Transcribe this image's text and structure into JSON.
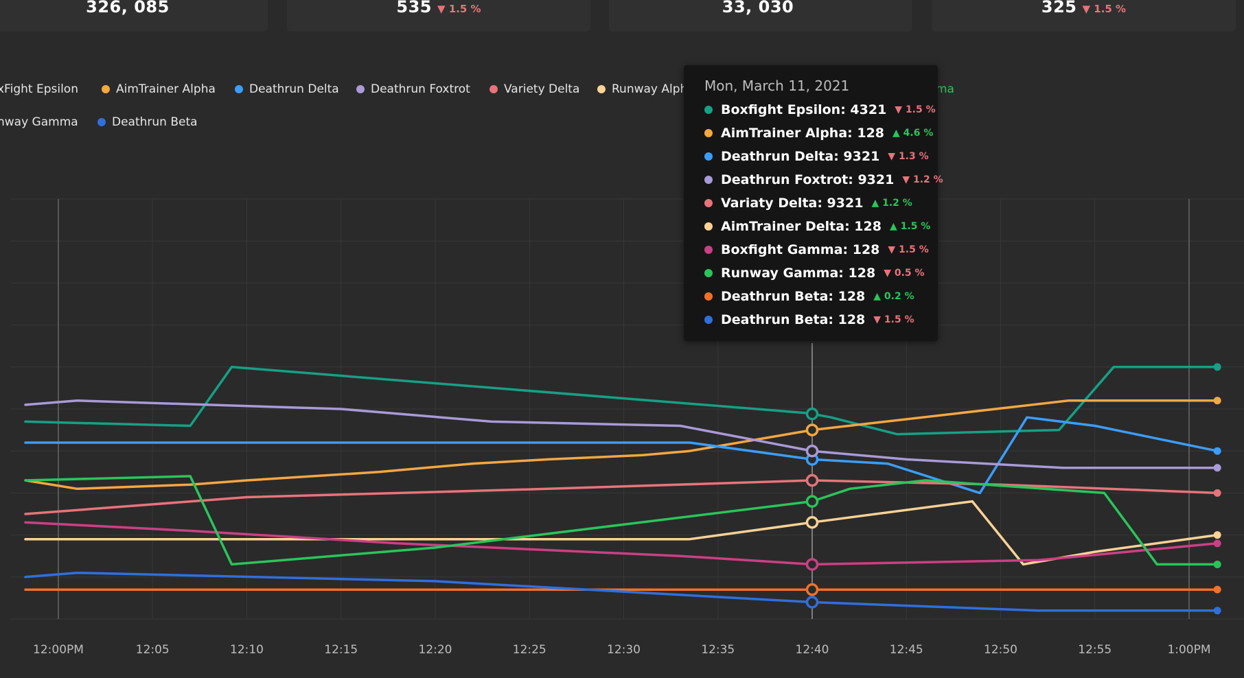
{
  "stats": [
    {
      "value": "326, 085",
      "delta": ""
    },
    {
      "value": "535",
      "delta": "▼ 1.5 %"
    },
    {
      "value": "33, 030",
      "delta": ""
    },
    {
      "value": "325",
      "delta": "▼ 1.5 %"
    }
  ],
  "legend": [
    {
      "label": "xFight Epsilon",
      "color": "#16a085"
    },
    {
      "label": "AimTrainer Alpha",
      "color": "#f5a742"
    },
    {
      "label": "Deathrun Delta",
      "color": "#3b9dfa"
    },
    {
      "label": "Deathrun Foxtrot",
      "color": "#a99ad8"
    },
    {
      "label": "Variety Delta",
      "color": "#e8737b"
    },
    {
      "label": "Runway Alph",
      "color": "#fcd296"
    },
    {
      "label": "ma",
      "color": "#2ac55a"
    },
    {
      "label": "nway Gamma",
      "color": "#2ac55a"
    },
    {
      "label": "Deathrun Beta",
      "color": "#2f6fde"
    }
  ],
  "tooltip": {
    "date": "Mon, March 11, 2021",
    "rows": [
      {
        "label": "Boxfight Epsilon: 4321",
        "delta": "▼ 1.5 %",
        "dir": "down",
        "color": "#16a085"
      },
      {
        "label": "AimTrainer Alpha: 128",
        "delta": "▲ 4.6 %",
        "dir": "up",
        "color": "#f5a742"
      },
      {
        "label": "Deathrun Delta: 9321",
        "delta": "▼ 1.3 %",
        "dir": "down",
        "color": "#3b9dfa"
      },
      {
        "label": "Deathrun Foxtrot: 9321",
        "delta": "▼ 1.2 %",
        "dir": "down",
        "color": "#a99ad8"
      },
      {
        "label": "Variaty Delta: 9321",
        "delta": "▲ 1.2 %",
        "dir": "up",
        "color": "#e8737b"
      },
      {
        "label": "AimTrainer Delta: 128",
        "delta": "▲ 1.5 %",
        "dir": "up",
        "color": "#fcd296"
      },
      {
        "label": "Boxfight Gamma: 128",
        "delta": "▼ 1.5 %",
        "dir": "down",
        "color": "#cc3f84"
      },
      {
        "label": "Runway Gamma: 128",
        "delta": "▼ 0.5 %",
        "dir": "down",
        "color": "#2ac55a"
      },
      {
        "label": "Deathrun Beta: 128",
        "delta": "▲ 0.2 %",
        "dir": "up",
        "color": "#f2702a"
      },
      {
        "label": "Deathrun Beta: 128",
        "delta": "▼ 1.5 %",
        "dir": "down",
        "color": "#2f6fde"
      }
    ]
  },
  "chart_data": {
    "type": "line",
    "x_tick_labels": [
      "12:00PM",
      "12:05",
      "12:10",
      "12:15",
      "12:20",
      "12:25",
      "12:30",
      "12:35",
      "12:40",
      "12:45",
      "12:50",
      "12:55",
      "1:00PM"
    ],
    "hover_x": "12:40",
    "grid": true,
    "ylim": [
      0,
      100
    ],
    "series": [
      {
        "color": "#16a085",
        "points": [
          [
            -1.75,
            47
          ],
          [
            7,
            46
          ],
          [
            9.2,
            60
          ],
          [
            39.8,
            49
          ],
          [
            41,
            48
          ],
          [
            44.5,
            44
          ],
          [
            53.1,
            45
          ],
          [
            56,
            60
          ],
          [
            61.5,
            60
          ]
        ]
      },
      {
        "color": "#f5a742",
        "points": [
          [
            -1.75,
            33
          ],
          [
            1,
            31
          ],
          [
            7,
            32
          ],
          [
            10,
            33
          ],
          [
            17,
            35
          ],
          [
            22,
            37
          ],
          [
            26,
            38
          ],
          [
            31,
            39
          ],
          [
            33.5,
            40
          ],
          [
            40,
            45
          ],
          [
            53.6,
            52
          ],
          [
            61.5,
            52
          ]
        ]
      },
      {
        "color": "#3b9dfa",
        "points": [
          [
            -1.75,
            42
          ],
          [
            7,
            42
          ],
          [
            33.5,
            42
          ],
          [
            40,
            38
          ],
          [
            44,
            37
          ],
          [
            48.9,
            30
          ],
          [
            51.4,
            48
          ],
          [
            55,
            46
          ],
          [
            61.5,
            40
          ]
        ]
      },
      {
        "color": "#a99ad8",
        "points": [
          [
            -1.75,
            51
          ],
          [
            1,
            52
          ],
          [
            8,
            51
          ],
          [
            15,
            50
          ],
          [
            23,
            47
          ],
          [
            33,
            46
          ],
          [
            40,
            40
          ],
          [
            45,
            38
          ],
          [
            53.3,
            36
          ],
          [
            61.5,
            36
          ]
        ]
      },
      {
        "color": "#e8737b",
        "points": [
          [
            -1.75,
            25
          ],
          [
            10,
            29
          ],
          [
            26,
            31
          ],
          [
            40,
            33
          ],
          [
            50,
            32
          ],
          [
            61.5,
            30
          ]
        ]
      },
      {
        "color": "#fcd296",
        "points": [
          [
            -1.75,
            19
          ],
          [
            33.5,
            19
          ],
          [
            40,
            23
          ],
          [
            48.5,
            28
          ],
          [
            51.2,
            13
          ],
          [
            55,
            16
          ],
          [
            61.5,
            20
          ]
        ]
      },
      {
        "color": "#cc3f84",
        "points": [
          [
            -1.75,
            23
          ],
          [
            7,
            21
          ],
          [
            18,
            18
          ],
          [
            33,
            15
          ],
          [
            40,
            13
          ],
          [
            52,
            14
          ],
          [
            61.5,
            18
          ]
        ]
      },
      {
        "color": "#2ac55a",
        "points": [
          [
            -1.75,
            33
          ],
          [
            7,
            34
          ],
          [
            9.2,
            13
          ],
          [
            20,
            17
          ],
          [
            40,
            28
          ],
          [
            42,
            31
          ],
          [
            46,
            33
          ],
          [
            55.5,
            30
          ],
          [
            58.3,
            13
          ],
          [
            61.5,
            13
          ]
        ]
      },
      {
        "color": "#f2702a",
        "points": [
          [
            -1.75,
            7
          ],
          [
            61.5,
            7
          ]
        ]
      },
      {
        "color": "#2f6fde",
        "points": [
          [
            -1.75,
            10
          ],
          [
            1,
            11
          ],
          [
            20,
            9
          ],
          [
            40,
            4
          ],
          [
            52,
            2
          ],
          [
            61.5,
            2
          ]
        ]
      }
    ]
  }
}
